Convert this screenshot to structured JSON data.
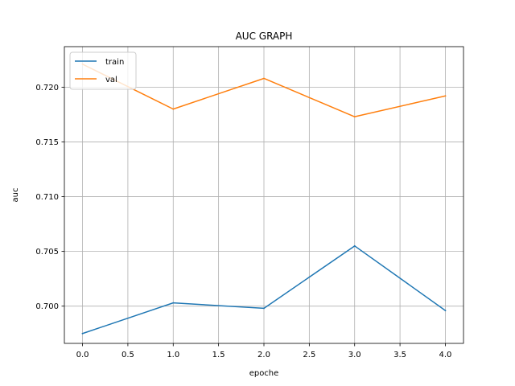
{
  "chart_data": {
    "type": "line",
    "title": "AUC GRAPH",
    "xlabel": "epoche",
    "ylabel": "auc",
    "x": [
      0,
      1,
      2,
      3,
      4
    ],
    "xlim": [
      -0.2,
      4.2
    ],
    "ylim": [
      0.6966,
      0.7237
    ],
    "xticks": [
      0.0,
      0.5,
      1.0,
      1.5,
      2.0,
      2.5,
      3.0,
      3.5,
      4.0
    ],
    "xtick_labels": [
      "0.0",
      "0.5",
      "1.0",
      "1.5",
      "2.0",
      "2.5",
      "3.0",
      "3.5",
      "4.0"
    ],
    "yticks": [
      0.7,
      0.705,
      0.71,
      0.715,
      0.72
    ],
    "ytick_labels": [
      "0.700",
      "0.705",
      "0.710",
      "0.715",
      "0.720"
    ],
    "grid": true,
    "legend_position": "top-left",
    "series": [
      {
        "name": "train",
        "color": "#1f77b4",
        "values": [
          0.6975,
          0.7003,
          0.6998,
          0.7055,
          0.6996
        ]
      },
      {
        "name": "val",
        "color": "#ff7f0e",
        "values": [
          0.7221,
          0.718,
          0.7208,
          0.7173,
          0.7192
        ]
      }
    ]
  }
}
